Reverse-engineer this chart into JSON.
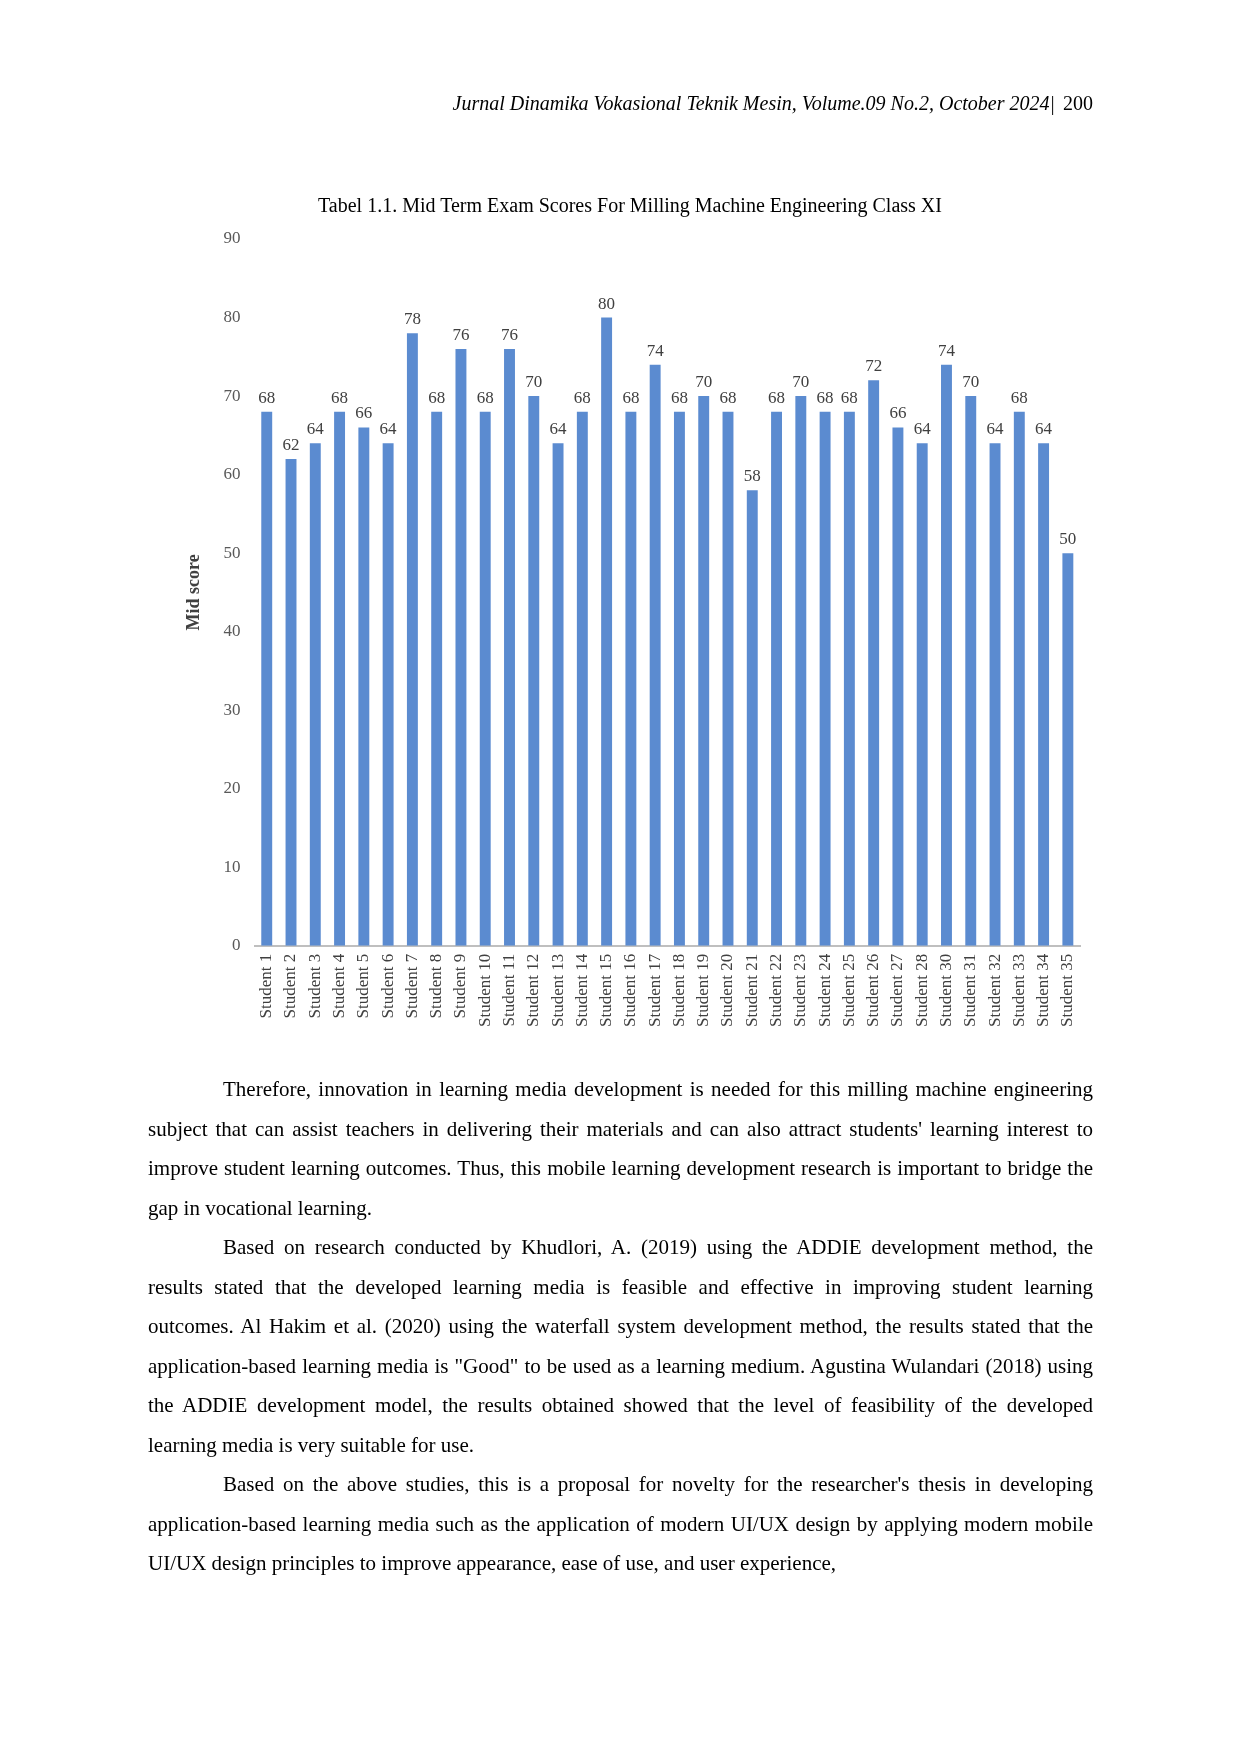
{
  "chart_data": {
    "type": "bar",
    "title": "Tabel 1.1. Mid Term Exam Scores For Milling Machine Engineering Class XI",
    "ylabel": "Mid score",
    "categories": [
      "Student 1",
      "Student 2",
      "Student 3",
      "Student 4",
      "Student 5",
      "Student 6",
      "Student 7",
      "Student 8",
      "Student 9",
      "Student 10",
      "Student 11",
      "Student 12",
      "Student 13",
      "Student 14",
      "Student 15",
      "Student 16",
      "Student 17",
      "Student 18",
      "Student 19",
      "Student 20",
      "Student 21",
      "Student 22",
      "Student 23",
      "Student 24",
      "Student 25",
      "Student 26",
      "Student 27",
      "Student 28",
      "Student 30",
      "Student 31",
      "Student 32",
      "Student 33",
      "Student 34",
      "Student 35"
    ],
    "values": [
      68,
      62,
      64,
      68,
      66,
      64,
      78,
      68,
      76,
      68,
      76,
      70,
      64,
      68,
      80,
      68,
      74,
      68,
      70,
      68,
      58,
      68,
      70,
      68,
      68,
      72,
      66,
      64,
      74,
      70,
      64,
      68,
      64,
      50
    ],
    "color": "#5b8bd0",
    "ylim": [
      0,
      90
    ],
    "yticks": [
      0,
      10,
      20,
      30,
      40,
      50,
      60,
      70,
      80,
      90
    ],
    "grid": false,
    "data_labels": true,
    "annotations": [
      "Jurnal Dinamika Vokasional Teknik Mesin, Volume.09 No.2, October 2024|",
      "200",
      "Therefore, innovation in learning media development is needed for this milling machine engineering subject that can assist teachers in delivering their materials and can also attract students' learning interest to improve student learning outcomes. Thus, this mobile learning development research is important to bridge the gap in vocational learning.",
      "Based on research conducted by Khudlori, A. (2019) using the ADDIE development method, the results stated that the developed learning media is feasible and effective in improving student learning outcomes. Al Hakim et al. (2020) using the waterfall system development method, the results stated that the application-based learning media is \"Good\" to be used as a learning medium. Agustina Wulandari (2018) using the ADDIE development model, the results obtained showed that the level of feasibility of the developed learning media is very suitable for use.",
      "Based on the above studies, this is a proposal for novelty for the researcher's thesis in developing application-based learning media such as the application of modern UI/UX design by applying modern mobile UI/UX design principles to improve appearance, ease of use, and user experience,"
    ]
  }
}
